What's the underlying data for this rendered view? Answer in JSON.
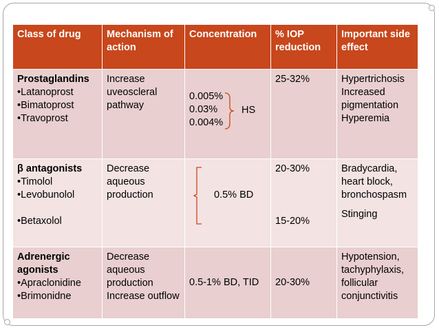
{
  "table": {
    "header": [
      "Class of drug",
      "Mechanism of action",
      "Concentration",
      "% IOP reduction",
      "Important side effect"
    ],
    "rows": [
      {
        "class": {
          "name": "Prostaglandins",
          "drugs": [
            "•Latanoprost",
            "•Bimatoprost",
            "•Travoprost"
          ]
        },
        "mechanism": [
          "Increase uveoscleral pathway"
        ],
        "concentration": {
          "lines": [
            "0.005%",
            "0.03%",
            "0.004%"
          ],
          "note": "HS"
        },
        "iop": [
          "25-32%"
        ],
        "side_effect": [
          "Hypertrichosis",
          "Increased pigmentation",
          "Hyperemia"
        ]
      },
      {
        "class": {
          "name": "β antagonists",
          "drugs": [
            "•Timolol",
            "•Levobunolol",
            "•Betaxolol"
          ]
        },
        "mechanism": [
          "Decrease aqueous production"
        ],
        "concentration": {
          "lines": [
            "0.5% BD"
          ]
        },
        "iop": [
          "20-30%",
          "15-20%"
        ],
        "side_effect": [
          "Bradycardia, heart block, bronchospasm",
          "Stinging"
        ]
      },
      {
        "class": {
          "name": "Adrenergic agonists",
          "drugs": [
            "•Apraclonidine",
            "•Brimonidne"
          ]
        },
        "mechanism": [
          "Decrease aqueous production",
          "Increase outflow"
        ],
        "concentration": {
          "lines": [
            "0.5-1% BD, TID"
          ]
        },
        "iop": [
          "20-30%"
        ],
        "side_effect": [
          "Hypotension, tachyphylaxis, follicular conjunctivitis"
        ]
      }
    ]
  }
}
